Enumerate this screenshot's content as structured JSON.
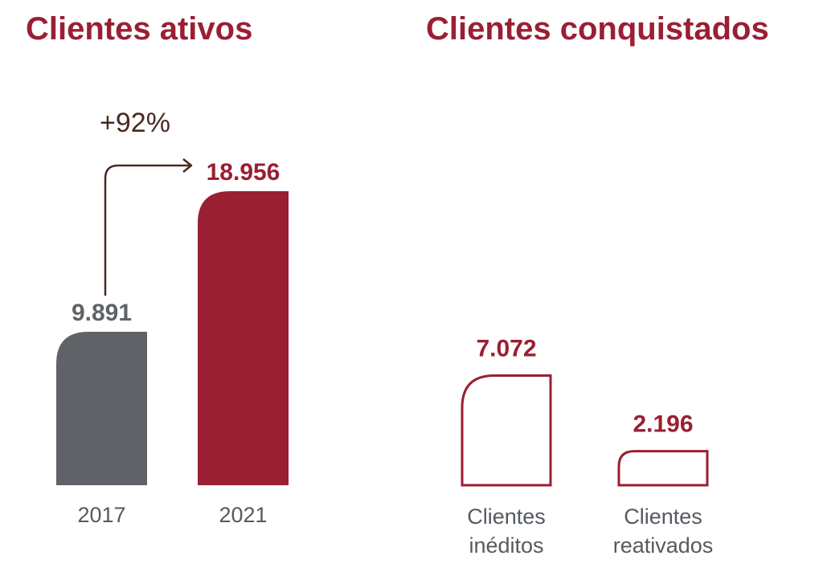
{
  "chart_data": [
    {
      "type": "bar",
      "title": "Clientes ativos",
      "categories": [
        "2017",
        "2021"
      ],
      "values": [
        9891,
        18956
      ],
      "value_labels": [
        "9.891",
        "18.956"
      ],
      "colors": [
        "#5f6266",
        "#9a1f33"
      ],
      "annotation": "+92%"
    },
    {
      "type": "bar",
      "title": "Clientes conquistados",
      "categories": [
        [
          "Clientes",
          "inéditos"
        ],
        [
          "Clientes",
          "reativados"
        ]
      ],
      "values": [
        7072,
        2196
      ],
      "value_labels": [
        "7.072",
        "2.196"
      ],
      "style": "outline",
      "colors": [
        "#9a1f33",
        "#9a1f33"
      ]
    }
  ],
  "colors": {
    "accent": "#9a1f33",
    "gray": "#5f6266",
    "label": "#555a60",
    "arrow": "#4a2a20"
  }
}
